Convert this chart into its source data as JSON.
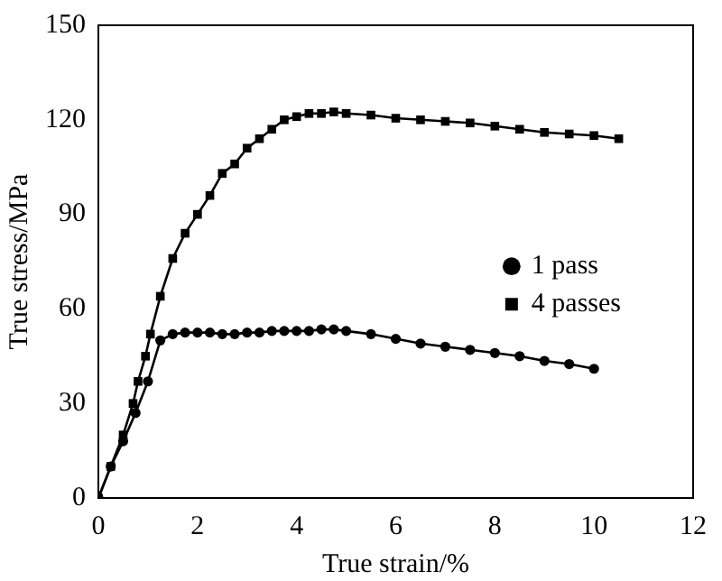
{
  "chart_data": {
    "type": "line",
    "xlabel": "True strain/%",
    "ylabel": "True stress/MPa",
    "xlim": [
      0,
      12
    ],
    "xticks": [
      0,
      2,
      4,
      6,
      8,
      10,
      12
    ],
    "ylim": [
      0,
      150
    ],
    "yticks": [
      0,
      30,
      60,
      90,
      120,
      150
    ],
    "grid": false,
    "legend": "right",
    "line_style": "solid",
    "series": [
      {
        "name": "1 pass",
        "color": "#000000",
        "marker": "circle",
        "x": [
          0,
          0.25,
          0.5,
          0.75,
          1.0,
          1.25,
          1.5,
          1.75,
          2,
          2.25,
          2.5,
          2.75,
          3,
          3.25,
          3.5,
          3.75,
          4,
          4.25,
          4.5,
          4.75,
          5,
          5.5,
          6,
          6.5,
          7,
          7.5,
          8,
          8.5,
          9,
          9.5,
          10
        ],
        "values": [
          0,
          10,
          18,
          27,
          37,
          50,
          52,
          52.5,
          52.5,
          52.5,
          52,
          52,
          52.5,
          52.5,
          53,
          53,
          53,
          53,
          53.5,
          53.5,
          53,
          52,
          50.5,
          49,
          48,
          47,
          46,
          45,
          43.5,
          42.5,
          41
        ]
      },
      {
        "name": "4 passes",
        "color": "#000000",
        "marker": "square",
        "x": [
          0,
          0.25,
          0.5,
          0.7,
          0.8,
          0.95,
          1.05,
          1.25,
          1.5,
          1.75,
          2,
          2.25,
          2.5,
          2.75,
          3,
          3.25,
          3.5,
          3.75,
          4,
          4.25,
          4.5,
          4.75,
          5,
          5.5,
          6,
          6.5,
          7,
          7.5,
          8,
          8.5,
          9,
          9.5,
          10,
          10.5
        ],
        "values": [
          0,
          10,
          20,
          30,
          37,
          45,
          52,
          64,
          76,
          84,
          90,
          96,
          103,
          106,
          111,
          114,
          117,
          120,
          121,
          122,
          122,
          122.5,
          122,
          121.5,
          120.5,
          120,
          119.5,
          119,
          118,
          117,
          116,
          115.5,
          115,
          114
        ]
      }
    ]
  }
}
